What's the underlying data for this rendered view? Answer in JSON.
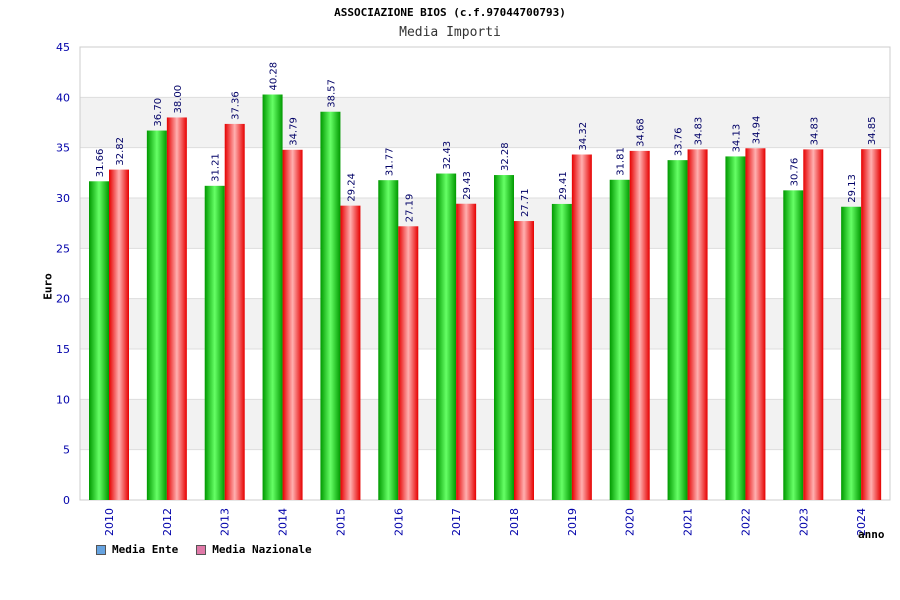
{
  "chart_data": {
    "type": "bar",
    "title": "ASSOCIAZIONE BIOS (c.f.97044700793)",
    "subtitle": "Media Importi",
    "ylabel": "Euro",
    "xlabel": "anno",
    "ylim": [
      0,
      45
    ],
    "yticks": [
      0,
      5,
      10,
      15,
      20,
      25,
      30,
      35,
      40,
      45
    ],
    "categories": [
      "2010",
      "2012",
      "2013",
      "2014",
      "2015",
      "2016",
      "2017",
      "2018",
      "2019",
      "2020",
      "2021",
      "2022",
      "2023",
      "2024"
    ],
    "series": [
      {
        "name": "Media Ente",
        "values": [
          31.66,
          36.7,
          31.21,
          40.28,
          38.57,
          31.77,
          32.43,
          32.28,
          29.41,
          31.81,
          33.76,
          34.13,
          30.76,
          29.13
        ],
        "labels": [
          "31.66",
          "36.70",
          "31.21",
          "40.28",
          "38.57",
          "31.77",
          "32.43",
          "32.28",
          "29.41",
          "31.81",
          "33.76",
          "34.13",
          "30.76",
          "29.13"
        ]
      },
      {
        "name": "Media Nazionale",
        "values": [
          32.82,
          38.0,
          37.36,
          34.79,
          29.24,
          27.19,
          29.43,
          27.71,
          34.32,
          34.68,
          34.83,
          34.94,
          34.83,
          34.85
        ],
        "labels": [
          "32.82",
          "38.00",
          "37.36",
          "34.79",
          "29.24",
          "27.19",
          "29.43",
          "27.71",
          "34.32",
          "34.68",
          "34.83",
          "34.94",
          "34.83",
          "34.85"
        ]
      }
    ],
    "colors": {
      "ente_dark": "#009900",
      "ente_light": "#66ff66",
      "naz_dark": "#e60000",
      "naz_light": "#ffb0b0",
      "legend_ente": "#66a3e0",
      "legend_naz": "#e079a8",
      "tick_text": "#0000aa",
      "label_text": "#000066",
      "band": "#f2f2f2",
      "grid": "#dddddd"
    }
  }
}
